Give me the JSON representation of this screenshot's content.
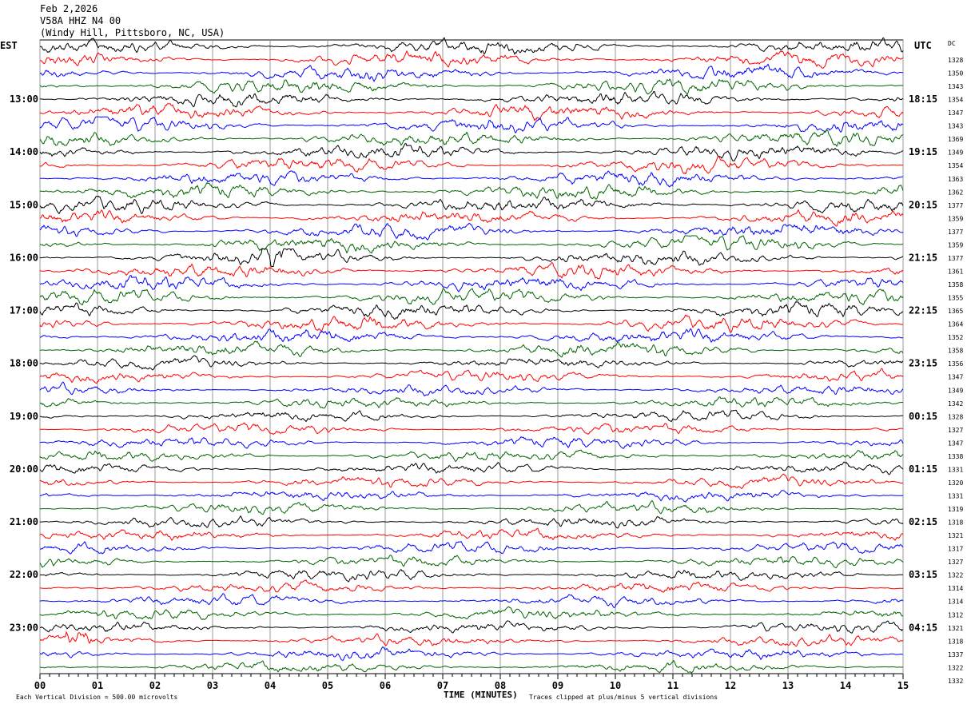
{
  "header": {
    "date": "Feb 2,2026",
    "station": "V58A HHZ N4 00",
    "location": "(Windy Hill, Pittsboro, NC, USA)"
  },
  "left_timezone": "EST",
  "right_timezone": "UTC",
  "dc_header": "DC",
  "footer": {
    "scale_note": "Each Vertical Division =  500.00 microvolts",
    "xlabel": "TIME (MINUTES)",
    "clip_note": "Traces clipped at plus/minus 5 vertical divisions"
  },
  "chart_data": {
    "type": "line",
    "title": "",
    "xlabel": "TIME (MINUTES)",
    "x_ticks": [
      "00",
      "01",
      "02",
      "03",
      "04",
      "05",
      "06",
      "07",
      "08",
      "09",
      "10",
      "11",
      "12",
      "13",
      "14",
      "15"
    ],
    "xlim": [
      0,
      15
    ],
    "grid": true,
    "trace_colors": [
      "#000000",
      "#ff0000",
      "#0000ff",
      "#006400"
    ],
    "left_hour_labels": [
      "13:00",
      "14:00",
      "15:00",
      "16:00",
      "17:00",
      "18:00",
      "19:00",
      "20:00",
      "21:00",
      "22:00",
      "23:00"
    ],
    "right_hour_labels": [
      "18:15",
      "19:15",
      "20:15",
      "21:15",
      "22:15",
      "23:15",
      "00:15",
      "01:15",
      "02:15",
      "03:15",
      "04:15"
    ],
    "dc_offsets": [
      1328,
      1350,
      1343,
      1354,
      1347,
      1343,
      1369,
      1349,
      1354,
      1363,
      1362,
      1377,
      1359,
      1377,
      1359,
      1377,
      1361,
      1358,
      1355,
      1365,
      1364,
      1352,
      1358,
      1356,
      1347,
      1349,
      1342,
      1328,
      1327,
      1347,
      1338,
      1331,
      1320,
      1331,
      1319,
      1318,
      1321,
      1317,
      1327,
      1322,
      1314,
      1314,
      1312,
      1321,
      1318,
      1337,
      1322,
      1332
    ],
    "events": [
      {
        "trace": 16,
        "start_min": 3.85,
        "end_min": 4.35,
        "amplitude": 3
      },
      {
        "trace": 45,
        "start_min": 0.45,
        "end_min": 0.95,
        "amplitude": 2
      },
      {
        "trace": 44,
        "start_min": 12.2,
        "end_min": 12.7,
        "amplitude": 1.8
      }
    ]
  }
}
